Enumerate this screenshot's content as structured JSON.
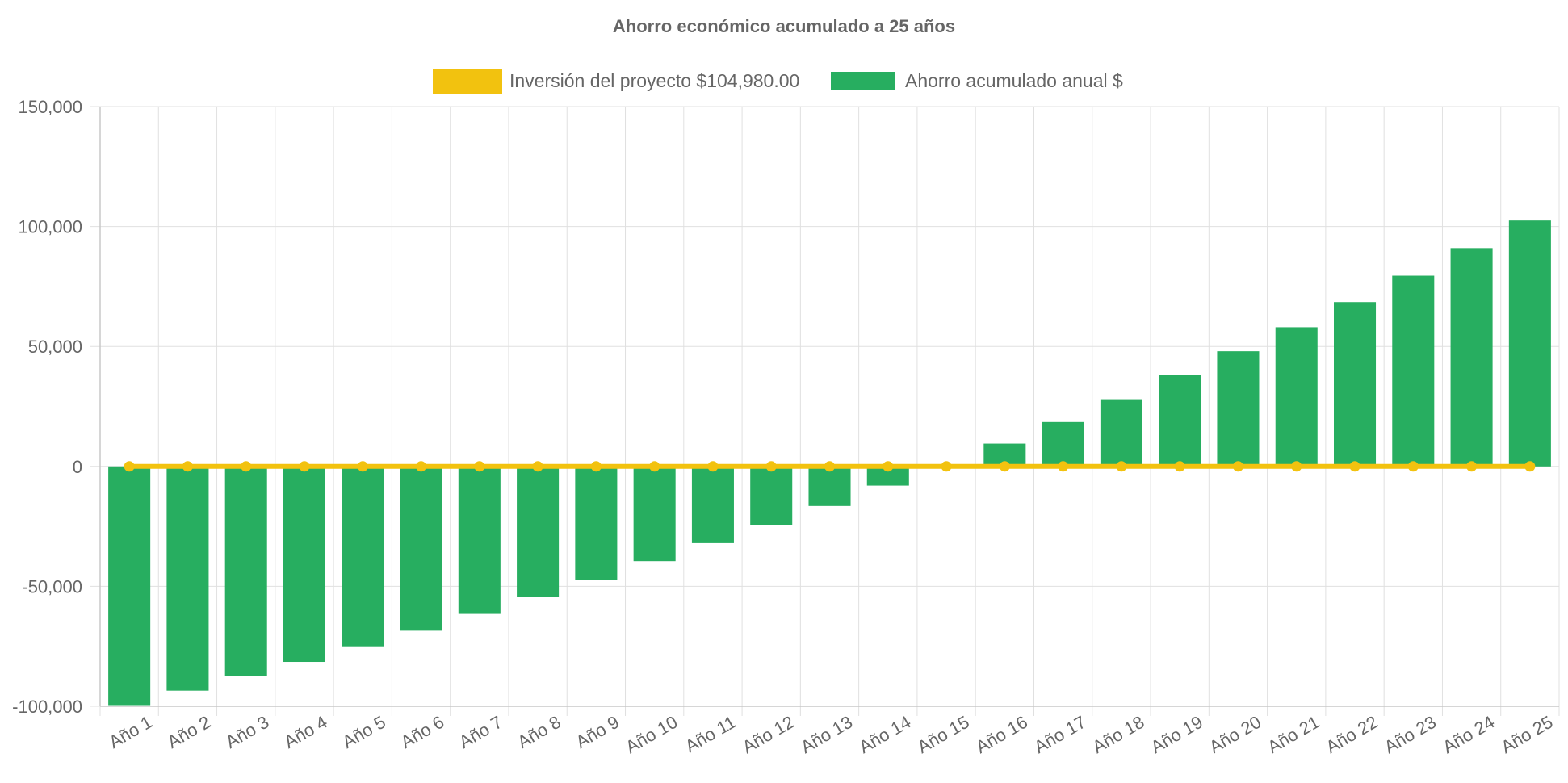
{
  "chart_data": {
    "type": "bar",
    "title": "Ahorro económico acumulado a 25 años",
    "categories": [
      "Año 1",
      "Año 2",
      "Año 3",
      "Año 4",
      "Año 5",
      "Año 6",
      "Año 7",
      "Año 8",
      "Año 9",
      "Año 10",
      "Año 11",
      "Año 12",
      "Año 13",
      "Año 14",
      "Año 15",
      "Año 16",
      "Año 17",
      "Año 18",
      "Año 19",
      "Año 20",
      "Año 21",
      "Año 22",
      "Año 23",
      "Año 24",
      "Año 25"
    ],
    "series": [
      {
        "name": "Inversión del proyecto $104,980.00",
        "type": "line",
        "color": "#f2c20f",
        "values": [
          0,
          0,
          0,
          0,
          0,
          0,
          0,
          0,
          0,
          0,
          0,
          0,
          0,
          0,
          0,
          0,
          0,
          0,
          0,
          0,
          0,
          0,
          0,
          0,
          0
        ]
      },
      {
        "name": "Ahorro acumulado anual $",
        "type": "bar",
        "color": "#27ae60",
        "values": [
          -99500,
          -93500,
          -87500,
          -81500,
          -75000,
          -68500,
          -61500,
          -54500,
          -47500,
          -39500,
          -32000,
          -24500,
          -16500,
          -8000,
          0,
          9500,
          18500,
          28000,
          38000,
          48000,
          58000,
          68500,
          79500,
          91000,
          102500
        ]
      }
    ],
    "ylim": [
      -100000,
      150000
    ],
    "yticks": [
      150000,
      100000,
      50000,
      0,
      -50000,
      -100000
    ],
    "ytick_labels": [
      "150,000",
      "100,000",
      "50,000",
      "0",
      "-50,000",
      "-100,000"
    ],
    "grid": true,
    "legend_position": "top-center",
    "xlabel": "",
    "ylabel": ""
  }
}
